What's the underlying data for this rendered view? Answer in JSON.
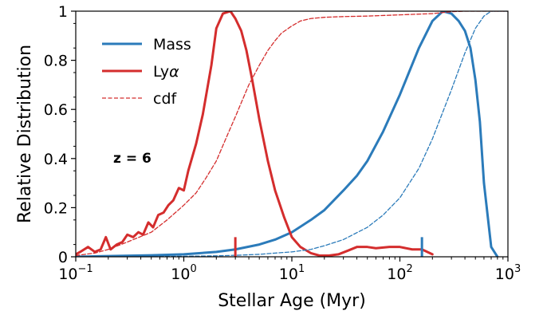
{
  "chart_data": {
    "type": "line",
    "xlabel": "Stellar Age  (Myr)",
    "ylabel": "Relative Distribution",
    "xscale": "log",
    "xlim": [
      0.1,
      1000
    ],
    "ylim": [
      0,
      1
    ],
    "x_ticks": [
      {
        "value": 0.1,
        "base": "10",
        "exp": "−1"
      },
      {
        "value": 1,
        "base": "10",
        "exp": "0"
      },
      {
        "value": 10,
        "base": "10",
        "exp": "1"
      },
      {
        "value": 100,
        "base": "10",
        "exp": "2"
      },
      {
        "value": 1000,
        "base": "10",
        "exp": "3"
      }
    ],
    "y_ticks": [
      {
        "value": 0,
        "label": "0"
      },
      {
        "value": 0.2,
        "label": "0.2"
      },
      {
        "value": 0.4,
        "label": "0.4"
      },
      {
        "value": 0.6,
        "label": "0.6"
      },
      {
        "value": 0.8,
        "label": "0.8"
      },
      {
        "value": 1,
        "label": "1"
      }
    ],
    "grid": false,
    "legend_position": "top-left",
    "annotation": "z = 6",
    "series": [
      {
        "name": "Mass",
        "color": "#2b7bba",
        "style": "solid",
        "x": [
          0.1,
          0.2,
          0.5,
          1,
          2,
          3,
          5,
          7,
          10,
          15,
          20,
          30,
          40,
          50,
          70,
          100,
          150,
          200,
          250,
          300,
          350,
          400,
          450,
          500,
          550,
          600,
          700,
          800
        ],
        "y": [
          0.0,
          0.003,
          0.006,
          0.01,
          0.02,
          0.03,
          0.05,
          0.07,
          0.1,
          0.15,
          0.19,
          0.27,
          0.33,
          0.39,
          0.51,
          0.66,
          0.85,
          0.96,
          1.0,
          0.99,
          0.96,
          0.92,
          0.85,
          0.72,
          0.55,
          0.3,
          0.04,
          0.0
        ]
      },
      {
        "name": "Lyα",
        "color": "#d42d2d",
        "style": "solid",
        "x": [
          0.1,
          0.11,
          0.13,
          0.15,
          0.17,
          0.19,
          0.21,
          0.24,
          0.27,
          0.3,
          0.34,
          0.38,
          0.42,
          0.47,
          0.52,
          0.58,
          0.65,
          0.72,
          0.8,
          0.9,
          1.0,
          1.1,
          1.3,
          1.5,
          1.8,
          2.0,
          2.3,
          2.7,
          3.0,
          3.4,
          3.8,
          4.3,
          5.0,
          6.0,
          7.0,
          8.5,
          10,
          12,
          15,
          18,
          22,
          27,
          33,
          40,
          50,
          60,
          80,
          100,
          130,
          160,
          200
        ],
        "y": [
          0.01,
          0.02,
          0.04,
          0.02,
          0.03,
          0.08,
          0.03,
          0.05,
          0.06,
          0.09,
          0.08,
          0.1,
          0.09,
          0.14,
          0.12,
          0.17,
          0.18,
          0.21,
          0.23,
          0.28,
          0.27,
          0.35,
          0.46,
          0.58,
          0.78,
          0.93,
          0.99,
          1.0,
          0.97,
          0.92,
          0.84,
          0.72,
          0.56,
          0.39,
          0.27,
          0.16,
          0.08,
          0.04,
          0.015,
          0.005,
          0.005,
          0.01,
          0.025,
          0.04,
          0.04,
          0.035,
          0.04,
          0.04,
          0.03,
          0.03,
          0.01
        ]
      },
      {
        "name": "Mass cdf",
        "color": "#2b7bba",
        "style": "dashed",
        "x": [
          0.1,
          0.5,
          1,
          2,
          3,
          5,
          7,
          10,
          15,
          20,
          30,
          50,
          70,
          100,
          150,
          200,
          300,
          400,
          500,
          600,
          700,
          800,
          1000
        ],
        "y": [
          0.0,
          0.001,
          0.002,
          0.004,
          0.006,
          0.01,
          0.015,
          0.02,
          0.03,
          0.045,
          0.07,
          0.12,
          0.17,
          0.24,
          0.36,
          0.48,
          0.68,
          0.83,
          0.93,
          0.98,
          1.0,
          1.0,
          1.0
        ]
      },
      {
        "name": "cdf",
        "color": "#d42d2d",
        "style": "dashed",
        "x": [
          0.1,
          0.15,
          0.2,
          0.3,
          0.5,
          0.7,
          1.0,
          1.3,
          1.6,
          2.0,
          2.5,
          3.0,
          3.5,
          4.0,
          5.0,
          6.0,
          7.0,
          8.0,
          10,
          12,
          15,
          20,
          30,
          50,
          100,
          200,
          300,
          400,
          1000
        ],
        "y": [
          0.005,
          0.015,
          0.03,
          0.06,
          0.1,
          0.15,
          0.21,
          0.26,
          0.32,
          0.39,
          0.49,
          0.57,
          0.64,
          0.7,
          0.78,
          0.84,
          0.88,
          0.91,
          0.94,
          0.96,
          0.97,
          0.975,
          0.978,
          0.98,
          0.985,
          0.99,
          0.998,
          1.0,
          1.0
        ]
      }
    ],
    "legend": [
      {
        "label": "Mass",
        "color": "#2b7bba",
        "style": "solid"
      },
      {
        "label": "Ly",
        "label_italic": "α",
        "color": "#d42d2d",
        "style": "solid"
      },
      {
        "label": "cdf",
        "color": "#d42d2d",
        "style": "dashed"
      }
    ],
    "markers": [
      {
        "x": 3.0,
        "y_top": 0.08,
        "color": "#d42d2d"
      },
      {
        "x": 160,
        "y_top": 0.08,
        "color": "#2b7bba"
      }
    ]
  }
}
